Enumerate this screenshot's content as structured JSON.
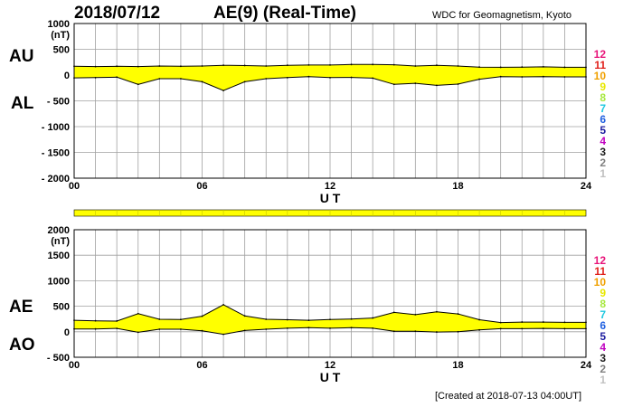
{
  "header": {
    "date": "2018/07/12",
    "index": "AE(9)  (Real-Time)",
    "source": "WDC for Geomagnetism, Kyoto"
  },
  "footer": {
    "created": "[Created at 2018-07-13 04:00UT]"
  },
  "colors": {
    "fill": "#ffff00",
    "line": "#000000",
    "grid": "#a0a0a0"
  },
  "station_scale": {
    "labels": [
      "12",
      "11",
      "10",
      "9",
      "8",
      "7",
      "6",
      "5",
      "4",
      "3",
      "2",
      "1"
    ],
    "colors": [
      "#e8157a",
      "#e0201a",
      "#f0a000",
      "#e8e800",
      "#a8e840",
      "#20c8e0",
      "#2060e0",
      "#2020a0",
      "#c000c0",
      "#202020",
      "#808080",
      "#c0c0c0"
    ]
  },
  "coverage_bar": {
    "from_hour": 0,
    "to_hour": 24
  },
  "chart_data": [
    {
      "type": "area",
      "panel": "AU/AL",
      "series_labels": [
        "AU",
        "AL"
      ],
      "y_unit_label": "(nT)",
      "ylim": [
        -2000,
        1000
      ],
      "yticks": [
        1000,
        500,
        0,
        -500,
        -1000,
        -1500,
        -2000
      ],
      "ytick_labels": [
        "1000",
        "500",
        "0",
        "- 500",
        "- 1000",
        "- 1500",
        "- 2000"
      ],
      "xlim": [
        0,
        24
      ],
      "xticks": [
        0,
        6,
        12,
        18,
        24
      ],
      "xtick_labels": [
        "00",
        "06",
        "12",
        "18",
        "24"
      ],
      "xlabel": "U T",
      "grid": true,
      "x": [
        0,
        1,
        2,
        3,
        4,
        5,
        6,
        7,
        8,
        9,
        10,
        11,
        12,
        13,
        14,
        15,
        16,
        17,
        18,
        19,
        20,
        21,
        22,
        23,
        24
      ],
      "upper": [
        170,
        165,
        170,
        165,
        175,
        170,
        175,
        190,
        185,
        175,
        190,
        195,
        195,
        205,
        205,
        200,
        175,
        190,
        175,
        155,
        150,
        155,
        160,
        150,
        150
      ],
      "lower": [
        -55,
        -50,
        -40,
        -180,
        -70,
        -70,
        -130,
        -300,
        -130,
        -70,
        -50,
        -30,
        -50,
        -45,
        -60,
        -180,
        -160,
        -200,
        -175,
        -80,
        -30,
        -35,
        -30,
        -35,
        -35
      ]
    },
    {
      "type": "area",
      "panel": "AE/AO",
      "series_labels": [
        "AE",
        "AO"
      ],
      "y_unit_label": "(nT)",
      "ylim": [
        -500,
        2000
      ],
      "yticks": [
        2000,
        1500,
        1000,
        500,
        0,
        -500
      ],
      "ytick_labels": [
        "2000",
        "1500",
        "1000",
        "500",
        "0",
        "- 500"
      ],
      "xlim": [
        0,
        24
      ],
      "xticks": [
        0,
        6,
        12,
        18,
        24
      ],
      "xtick_labels": [
        "00",
        "06",
        "12",
        "18",
        "24"
      ],
      "xlabel": "U T",
      "grid": true,
      "x": [
        0,
        1,
        2,
        3,
        4,
        5,
        6,
        7,
        8,
        9,
        10,
        11,
        12,
        13,
        14,
        15,
        16,
        17,
        18,
        19,
        20,
        21,
        22,
        23,
        24
      ],
      "upper": [
        225,
        215,
        210,
        355,
        245,
        240,
        305,
        530,
        310,
        245,
        235,
        225,
        240,
        250,
        270,
        380,
        335,
        390,
        350,
        235,
        180,
        190,
        190,
        185,
        185
      ],
      "lower": [
        55,
        55,
        65,
        -10,
        50,
        50,
        20,
        -50,
        25,
        50,
        70,
        80,
        70,
        80,
        70,
        10,
        10,
        -5,
        0,
        35,
        60,
        60,
        65,
        60,
        60
      ]
    }
  ]
}
